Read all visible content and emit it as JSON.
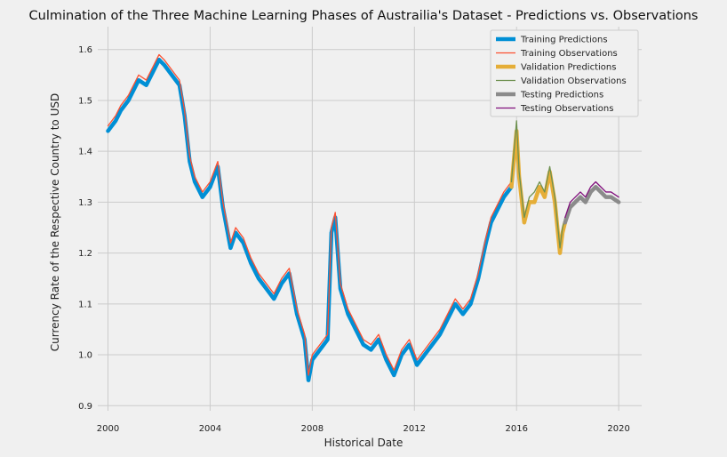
{
  "chart_data": {
    "type": "line",
    "title": "Culmination of the Three Machine Learning Phases of Austrailia's Dataset - Predictions vs. Observations",
    "xlabel": "Historical Date",
    "ylabel": "Currency Rate of the Respective Country to USD",
    "xlim": [
      1999.6,
      2020.9
    ],
    "ylim": [
      0.89,
      1.645
    ],
    "xticks": [
      2000,
      2004,
      2008,
      2012,
      2016,
      2020
    ],
    "yticks": [
      0.9,
      1.0,
      1.1,
      1.2,
      1.3,
      1.4,
      1.5,
      1.6
    ],
    "xtick_labels": [
      "2000",
      "2004",
      "2008",
      "2012",
      "2016",
      "2020"
    ],
    "ytick_labels": [
      "0.9",
      "1.0",
      "1.1",
      "1.2",
      "1.3",
      "1.4",
      "1.5",
      "1.6"
    ],
    "grid": true,
    "legend_position": "top-right",
    "legend_entries": [
      "Training Predictions",
      "Training Observations",
      "Validation Predictions",
      "Validation Observations",
      "Testing Predictions",
      "Testing Observations"
    ],
    "colors": {
      "training_predictions": "#008fd5",
      "training_observations": "#fc4f30",
      "validation_predictions": "#e5ae38",
      "validation_observations": "#6d904f",
      "testing_predictions": "#8b8b8b",
      "testing_observations": "#810f7c"
    },
    "series": [
      {
        "name": "Training Predictions",
        "role": "prediction",
        "x": [
          2000.0,
          2000.3,
          2000.5,
          2000.8,
          2001.0,
          2001.2,
          2001.5,
          2001.8,
          2002.0,
          2002.2,
          2002.5,
          2002.8,
          2003.0,
          2003.2,
          2003.4,
          2003.7,
          2004.0,
          2004.3,
          2004.5,
          2004.8,
          2005.0,
          2005.3,
          2005.6,
          2005.9,
          2006.2,
          2006.5,
          2006.8,
          2007.1,
          2007.4,
          2007.7,
          2007.85,
          2008.0,
          2008.3,
          2008.6,
          2008.75,
          2008.9,
          2009.1,
          2009.4,
          2009.7,
          2010.0,
          2010.3,
          2010.6,
          2010.9,
          2011.2,
          2011.5,
          2011.8,
          2012.1,
          2012.4,
          2012.7,
          2013.0,
          2013.3,
          2013.6,
          2013.9,
          2014.2,
          2014.5,
          2014.8,
          2015.0,
          2015.3,
          2015.5,
          2015.8
        ],
        "values": [
          1.44,
          1.46,
          1.48,
          1.5,
          1.52,
          1.54,
          1.53,
          1.56,
          1.58,
          1.57,
          1.55,
          1.53,
          1.47,
          1.38,
          1.34,
          1.31,
          1.33,
          1.37,
          1.29,
          1.21,
          1.24,
          1.22,
          1.18,
          1.15,
          1.13,
          1.11,
          1.14,
          1.16,
          1.08,
          1.03,
          0.95,
          0.99,
          1.01,
          1.03,
          1.24,
          1.27,
          1.13,
          1.08,
          1.05,
          1.02,
          1.01,
          1.03,
          0.99,
          0.96,
          1.0,
          1.02,
          0.98,
          1.0,
          1.02,
          1.04,
          1.07,
          1.1,
          1.08,
          1.1,
          1.15,
          1.22,
          1.26,
          1.29,
          1.31,
          1.33
        ]
      },
      {
        "name": "Training Observations",
        "role": "observation",
        "x": [
          2000.0,
          2000.3,
          2000.5,
          2000.8,
          2001.0,
          2001.2,
          2001.5,
          2001.8,
          2002.0,
          2002.2,
          2002.5,
          2002.8,
          2003.0,
          2003.2,
          2003.4,
          2003.7,
          2004.0,
          2004.3,
          2004.5,
          2004.8,
          2005.0,
          2005.3,
          2005.6,
          2005.9,
          2006.2,
          2006.5,
          2006.8,
          2007.1,
          2007.4,
          2007.7,
          2007.85,
          2008.0,
          2008.3,
          2008.6,
          2008.75,
          2008.9,
          2009.1,
          2009.4,
          2009.7,
          2010.0,
          2010.3,
          2010.6,
          2010.9,
          2011.2,
          2011.5,
          2011.8,
          2012.1,
          2012.4,
          2012.7,
          2013.0,
          2013.3,
          2013.6,
          2013.9,
          2014.2,
          2014.5,
          2014.8,
          2015.0,
          2015.3,
          2015.5,
          2015.8
        ],
        "values": [
          1.45,
          1.47,
          1.49,
          1.51,
          1.53,
          1.55,
          1.54,
          1.57,
          1.59,
          1.58,
          1.56,
          1.54,
          1.48,
          1.39,
          1.35,
          1.32,
          1.34,
          1.38,
          1.3,
          1.22,
          1.25,
          1.23,
          1.19,
          1.16,
          1.14,
          1.12,
          1.15,
          1.17,
          1.09,
          1.04,
          0.96,
          1.0,
          1.02,
          1.04,
          1.25,
          1.28,
          1.14,
          1.09,
          1.06,
          1.03,
          1.02,
          1.04,
          1.0,
          0.97,
          1.01,
          1.03,
          0.99,
          1.01,
          1.03,
          1.05,
          1.08,
          1.11,
          1.09,
          1.11,
          1.16,
          1.23,
          1.27,
          1.3,
          1.32,
          1.34
        ]
      },
      {
        "name": "Validation Predictions",
        "role": "prediction",
        "x": [
          2015.8,
          2016.0,
          2016.1,
          2016.3,
          2016.5,
          2016.7,
          2016.9,
          2017.1,
          2017.3,
          2017.5,
          2017.7,
          2017.8,
          2017.9
        ],
        "values": [
          1.33,
          1.44,
          1.35,
          1.26,
          1.3,
          1.3,
          1.33,
          1.31,
          1.36,
          1.3,
          1.2,
          1.24,
          1.26
        ]
      },
      {
        "name": "Validation Observations",
        "role": "observation",
        "x": [
          2015.8,
          2016.0,
          2016.1,
          2016.3,
          2016.5,
          2016.7,
          2016.9,
          2017.1,
          2017.3,
          2017.5,
          2017.7,
          2017.8,
          2017.9
        ],
        "values": [
          1.34,
          1.46,
          1.36,
          1.27,
          1.31,
          1.32,
          1.34,
          1.32,
          1.37,
          1.31,
          1.21,
          1.25,
          1.27
        ]
      },
      {
        "name": "Testing Predictions",
        "role": "prediction",
        "x": [
          2017.9,
          2018.1,
          2018.3,
          2018.5,
          2018.7,
          2018.9,
          2019.1,
          2019.3,
          2019.5,
          2019.7,
          2020.0
        ],
        "values": [
          1.26,
          1.29,
          1.3,
          1.31,
          1.3,
          1.32,
          1.33,
          1.32,
          1.31,
          1.31,
          1.3
        ]
      },
      {
        "name": "Testing Observations",
        "role": "observation",
        "x": [
          2017.9,
          2018.1,
          2018.3,
          2018.5,
          2018.7,
          2018.9,
          2019.1,
          2019.3,
          2019.5,
          2019.7,
          2020.0
        ],
        "values": [
          1.27,
          1.3,
          1.31,
          1.32,
          1.31,
          1.33,
          1.34,
          1.33,
          1.32,
          1.32,
          1.31
        ]
      }
    ]
  }
}
